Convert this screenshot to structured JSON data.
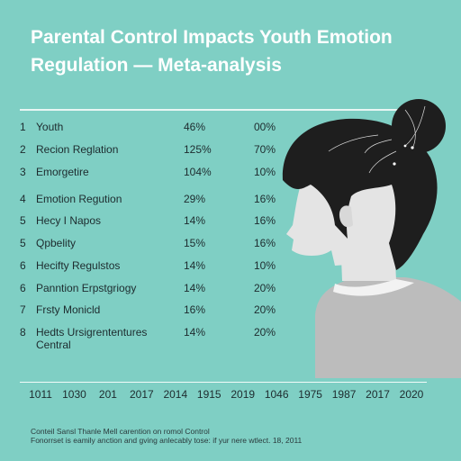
{
  "title": "Parental Control Impacts Youth Emotion Regulation — Meta-analysis",
  "colors": {
    "background": "#7fcfc4",
    "title": "#ffffff",
    "text": "#1d2b2e",
    "hair": "#1e1e1e",
    "skin": "#e4e4e4",
    "shirt": "#bcbcbc"
  },
  "chart_data": {
    "type": "table",
    "rows": [
      {
        "rank": "1",
        "label": "Youth",
        "col1": "46%",
        "col2": "00%"
      },
      {
        "rank": "2",
        "label": "Recion Reglation",
        "col1": "125%",
        "col2": "70%"
      },
      {
        "rank": "3",
        "label": "Emorgetire",
        "col1": "104%",
        "col2": "10%"
      },
      {
        "rank": "4",
        "label": "Emotion Regution",
        "col1": "29%",
        "col2": "16%"
      },
      {
        "rank": "5",
        "label": "Hecy I Napos",
        "col1": "14%",
        "col2": "16%"
      },
      {
        "rank": "5",
        "label": "Qpbelity",
        "col1": "15%",
        "col2": "16%"
      },
      {
        "rank": "6",
        "label": "Hecifty Regulstos",
        "col1": "14%",
        "col2": "10%"
      },
      {
        "rank": "6",
        "label": "Panntion Erpstgriogy",
        "col1": "14%",
        "col2": "20%"
      },
      {
        "rank": "7",
        "label": "Frsty Monicld",
        "col1": "16%",
        "col2": "20%"
      },
      {
        "rank": "8",
        "label": "Hedts Ursigrententures Central",
        "col1": "14%",
        "col2": "20%"
      }
    ],
    "x_ticks": [
      "1011",
      "1030",
      "201",
      "2017",
      "2014",
      "1915",
      "2019",
      "1046",
      "1975",
      "1987",
      "2017",
      "2020"
    ]
  },
  "footnote": [
    "Conteil Sansl Thanle Mell carention on romol Control",
    "Fonorrset is eamily anction and gving anlecably tose: if yur nere wtlect. 18, 2011"
  ]
}
